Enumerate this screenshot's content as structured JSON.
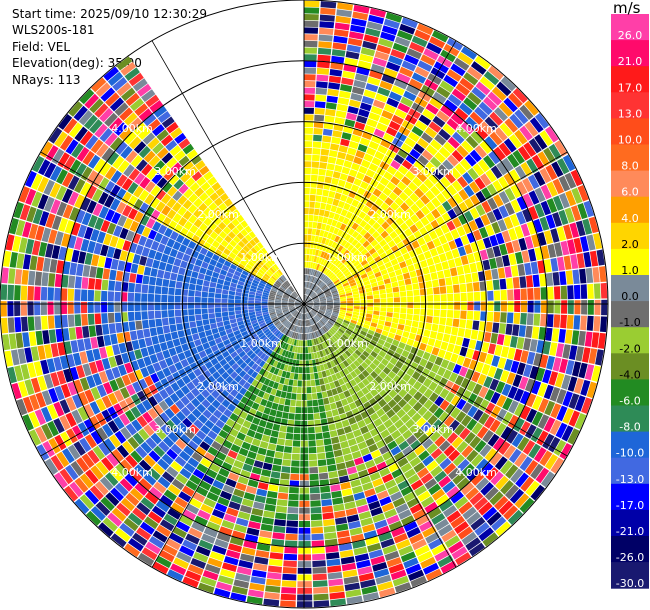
{
  "header": {
    "start_time": "Start time: 2025/09/10 12:30:29",
    "instrument": "WLS200s-181",
    "field": "Field: VEL",
    "elevation": "Elevation(deg): 35.00",
    "nrays": "NRays: 113"
  },
  "colorbar": {
    "unit": "m/s",
    "ticks": [
      "26.0",
      "21.0",
      "17.0",
      "13.0",
      "10.0",
      "8.0",
      "6.0",
      "4.0",
      "2.0",
      "1.0",
      "0.0",
      "-1.0",
      "-2.0",
      "-4.0",
      "-6.0",
      "-8.0",
      "-10.0",
      "-13.0",
      "-17.0",
      "-21.0",
      "-26.0",
      "-30.0"
    ],
    "colors": [
      "#ff3fa8",
      "#ff0a6b",
      "#ff1a1a",
      "#ff3333",
      "#ff4d1a",
      "#ff6b1f",
      "#ff8a5a",
      "#ffa000",
      "#ffd500",
      "#ffff00",
      "#7a8a99",
      "#6e6e6e",
      "#9acd32",
      "#6b8e23",
      "#228b22",
      "#2e8b57",
      "#1e66d8",
      "#4169e1",
      "#0000ff",
      "#0000a8",
      "#000066",
      "#191970"
    ]
  },
  "chart_data": {
    "type": "heatmap",
    "title": "",
    "field": "VEL",
    "units": "m/s",
    "nrays": 113,
    "elevation_deg": 35.0,
    "range_rings_km": [
      1.0,
      2.0,
      3.0,
      4.0,
      5.0
    ],
    "ring_labels": [
      "1.00km",
      "2.00km",
      "3.00km",
      "4.00km",
      "5.00km"
    ],
    "max_range_km": 5.0,
    "blank_sector_deg": [
      -35,
      0
    ],
    "grid": true,
    "colorscale_min": -30.0,
    "colorscale_max": 26.0
  }
}
